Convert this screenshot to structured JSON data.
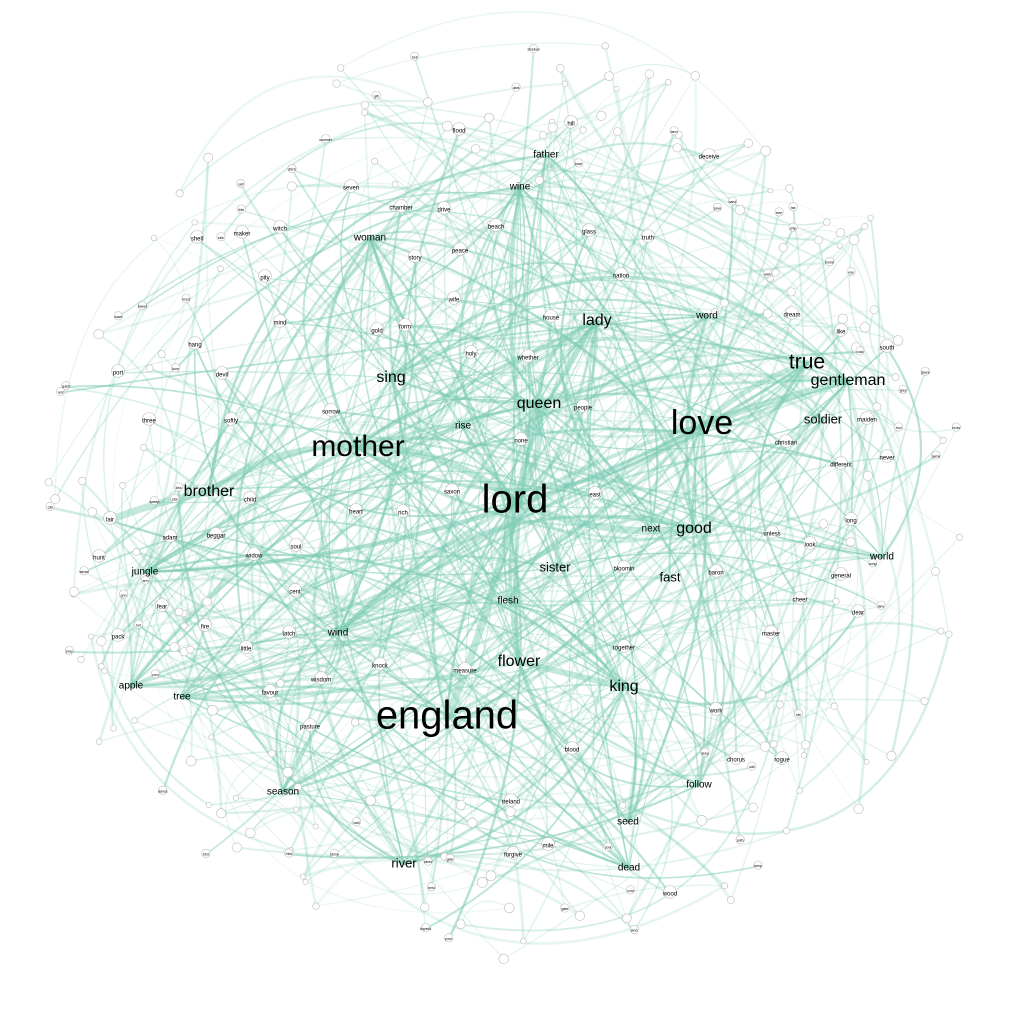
{
  "graph": {
    "edge_color": "#7ccbb3",
    "node_stroke": "#bcbcbc",
    "label_color": "#000000",
    "words": [
      {
        "t": "lord",
        "w": 10
      },
      {
        "t": "england",
        "w": 10
      },
      {
        "t": "love",
        "w": 9
      },
      {
        "t": "mother",
        "w": 8
      },
      {
        "t": "true",
        "w": 6
      },
      {
        "t": "gentleman",
        "w": 5
      },
      {
        "t": "queen",
        "w": 5
      },
      {
        "t": "flower",
        "w": 5
      },
      {
        "t": "king",
        "w": 5
      },
      {
        "t": "sing",
        "w": 5
      },
      {
        "t": "lady",
        "w": 5
      },
      {
        "t": "brother",
        "w": 5
      },
      {
        "t": "good",
        "w": 5
      },
      {
        "t": "soldier",
        "w": 4
      },
      {
        "t": "sister",
        "w": 4
      },
      {
        "t": "fast",
        "w": 4
      },
      {
        "t": "river",
        "w": 4
      },
      {
        "t": "jungle",
        "w": 3
      },
      {
        "t": "tree",
        "w": 3
      },
      {
        "t": "season",
        "w": 3
      },
      {
        "t": "woman",
        "w": 3
      },
      {
        "t": "world",
        "w": 3
      },
      {
        "t": "next",
        "w": 3
      },
      {
        "t": "seed",
        "w": 3
      },
      {
        "t": "follow",
        "w": 3
      },
      {
        "t": "father",
        "w": 3
      },
      {
        "t": "rise",
        "w": 3
      },
      {
        "t": "word",
        "w": 3
      },
      {
        "t": "apple",
        "w": 3
      },
      {
        "t": "wind",
        "w": 3
      },
      {
        "t": "flesh",
        "w": 3
      },
      {
        "t": "dead",
        "w": 3
      },
      {
        "t": "wine",
        "w": 3
      },
      {
        "t": "heart",
        "w": 2
      },
      {
        "t": "soul",
        "w": 2
      },
      {
        "t": "none",
        "w": 2
      },
      {
        "t": "wife",
        "w": 2
      },
      {
        "t": "peace",
        "w": 2
      },
      {
        "t": "pity",
        "w": 2
      },
      {
        "t": "devil",
        "w": 2
      },
      {
        "t": "witch",
        "w": 2
      },
      {
        "t": "sorrow",
        "w": 2
      },
      {
        "t": "mile",
        "w": 2
      },
      {
        "t": "wood",
        "w": 2
      },
      {
        "t": "lair",
        "w": 2
      },
      {
        "t": "hunt",
        "w": 2
      },
      {
        "t": "look",
        "w": 2
      },
      {
        "t": "cheer",
        "w": 2
      },
      {
        "t": "dear",
        "w": 2
      },
      {
        "t": "work",
        "w": 2
      },
      {
        "t": "three",
        "w": 2
      },
      {
        "t": "port",
        "w": 2
      },
      {
        "t": "nation",
        "w": 2
      },
      {
        "t": "people",
        "w": 2
      },
      {
        "t": "east",
        "w": 2
      },
      {
        "t": "child",
        "w": 2
      },
      {
        "t": "christian",
        "w": 2
      },
      {
        "t": "different",
        "w": 2
      },
      {
        "t": "south",
        "w": 2
      },
      {
        "t": "measure",
        "w": 2
      },
      {
        "t": "blood",
        "w": 2
      },
      {
        "t": "chorus",
        "w": 2
      },
      {
        "t": "rogue",
        "w": 2
      },
      {
        "t": "master",
        "w": 2
      },
      {
        "t": "general",
        "w": 2
      },
      {
        "t": "baron",
        "w": 2
      },
      {
        "t": "bloomin",
        "w": 2
      },
      {
        "t": "together",
        "w": 2
      },
      {
        "t": "favour",
        "w": 2
      },
      {
        "t": "pasture",
        "w": 2
      },
      {
        "t": "forgive",
        "w": 2
      },
      {
        "t": "ireland",
        "w": 2
      },
      {
        "t": "cent",
        "w": 2
      },
      {
        "t": "house",
        "w": 2
      },
      {
        "t": "whether",
        "w": 2
      },
      {
        "t": "holy",
        "w": 2
      },
      {
        "t": "story",
        "w": 2
      },
      {
        "t": "beach",
        "w": 2
      },
      {
        "t": "glass",
        "w": 2
      },
      {
        "t": "truth",
        "w": 2
      },
      {
        "t": "chamber",
        "w": 2
      },
      {
        "t": "flood",
        "w": 2
      },
      {
        "t": "hill",
        "w": 2
      },
      {
        "t": "deceive",
        "w": 2
      },
      {
        "t": "seven",
        "w": 2
      },
      {
        "t": "maker",
        "w": 2
      },
      {
        "t": "shell",
        "w": 2
      },
      {
        "t": "dream",
        "w": 2
      },
      {
        "t": "maiden",
        "w": 2
      },
      {
        "t": "never",
        "w": 2
      },
      {
        "t": "long",
        "w": 2
      },
      {
        "t": "unless",
        "w": 2
      },
      {
        "t": "beggar",
        "w": 2
      },
      {
        "t": "widow",
        "w": 2
      },
      {
        "t": "adam",
        "w": 2
      },
      {
        "t": "saxon",
        "w": 2
      },
      {
        "t": "latch",
        "w": 2
      },
      {
        "t": "little",
        "w": 2
      },
      {
        "t": "fire",
        "w": 2
      },
      {
        "t": "pack",
        "w": 2
      },
      {
        "t": "softly",
        "w": 2
      },
      {
        "t": "hang",
        "w": 2
      },
      {
        "t": "mind",
        "w": 2
      },
      {
        "t": "form",
        "w": 2
      },
      {
        "t": "like",
        "w": 2
      },
      {
        "t": "gold",
        "w": 2
      },
      {
        "t": "drive",
        "w": 2
      },
      {
        "t": "wisdom",
        "w": 2
      },
      {
        "t": "knock",
        "w": 2
      },
      {
        "t": "fear",
        "w": 2
      },
      {
        "t": "rich",
        "w": 2
      },
      {
        "t": "dark",
        "w": 1
      },
      {
        "t": "gain",
        "w": 1
      },
      {
        "t": "toll",
        "w": 1
      },
      {
        "t": "self",
        "w": 1
      },
      {
        "t": "ditch",
        "w": 1
      },
      {
        "t": "corn",
        "w": 1
      },
      {
        "t": "summer",
        "w": 1
      },
      {
        "t": "hopeful",
        "w": 1
      },
      {
        "t": "steam",
        "w": 1
      },
      {
        "t": "must",
        "w": 1
      },
      {
        "t": "kiss",
        "w": 1
      },
      {
        "t": "sweep",
        "w": 1
      },
      {
        "t": "brow",
        "w": 1
      },
      {
        "t": "silver",
        "w": 1
      },
      {
        "t": "gate",
        "w": 1
      },
      {
        "t": "fool",
        "w": 1
      },
      {
        "t": "wall",
        "w": 1
      },
      {
        "t": "best",
        "w": 1
      },
      {
        "t": "save",
        "w": 1
      },
      {
        "t": "cold",
        "w": 1
      },
      {
        "t": "sweet",
        "w": 1
      },
      {
        "t": "shadow",
        "w": 1
      },
      {
        "t": "rest",
        "w": 1
      },
      {
        "t": "ever",
        "w": 1
      },
      {
        "t": "quick",
        "w": 1
      },
      {
        "t": "poor",
        "w": 1
      },
      {
        "t": "mist",
        "w": 1
      },
      {
        "t": "road",
        "w": 1
      },
      {
        "t": "sand",
        "w": 1
      },
      {
        "t": "star",
        "w": 1
      },
      {
        "t": "land",
        "w": 1
      },
      {
        "t": "born",
        "w": 1
      },
      {
        "t": "gun",
        "w": 1
      },
      {
        "t": "ship",
        "w": 1
      },
      {
        "t": "bird",
        "w": 1
      },
      {
        "t": "fair",
        "w": 1
      },
      {
        "t": "dance",
        "w": 1
      },
      {
        "t": "grace",
        "w": 1
      },
      {
        "t": "name",
        "w": 1
      },
      {
        "t": "call",
        "w": 1
      },
      {
        "t": "town",
        "w": 1
      },
      {
        "t": "tale",
        "w": 1
      },
      {
        "t": "deep",
        "w": 1
      },
      {
        "t": "grey",
        "w": 1
      },
      {
        "t": "stone",
        "w": 1
      },
      {
        "t": "lamp",
        "w": 1
      },
      {
        "t": "oak",
        "w": 1
      },
      {
        "t": "farm",
        "w": 1
      },
      {
        "t": "home",
        "w": 1
      },
      {
        "t": "song",
        "w": 1
      },
      {
        "t": "lane",
        "w": 1
      },
      {
        "t": "bell",
        "w": 1
      },
      {
        "t": "tide",
        "w": 1
      },
      {
        "t": "wave",
        "w": 1
      },
      {
        "t": "gift",
        "w": 1
      },
      {
        "t": "path",
        "w": 1
      },
      {
        "t": "pool",
        "w": 1
      },
      {
        "t": "pray",
        "w": 1
      },
      {
        "t": "wish",
        "w": 1
      },
      {
        "t": "fall",
        "w": 1
      },
      {
        "t": "arm",
        "w": 1
      },
      {
        "t": "eye",
        "w": 1
      }
    ]
  }
}
